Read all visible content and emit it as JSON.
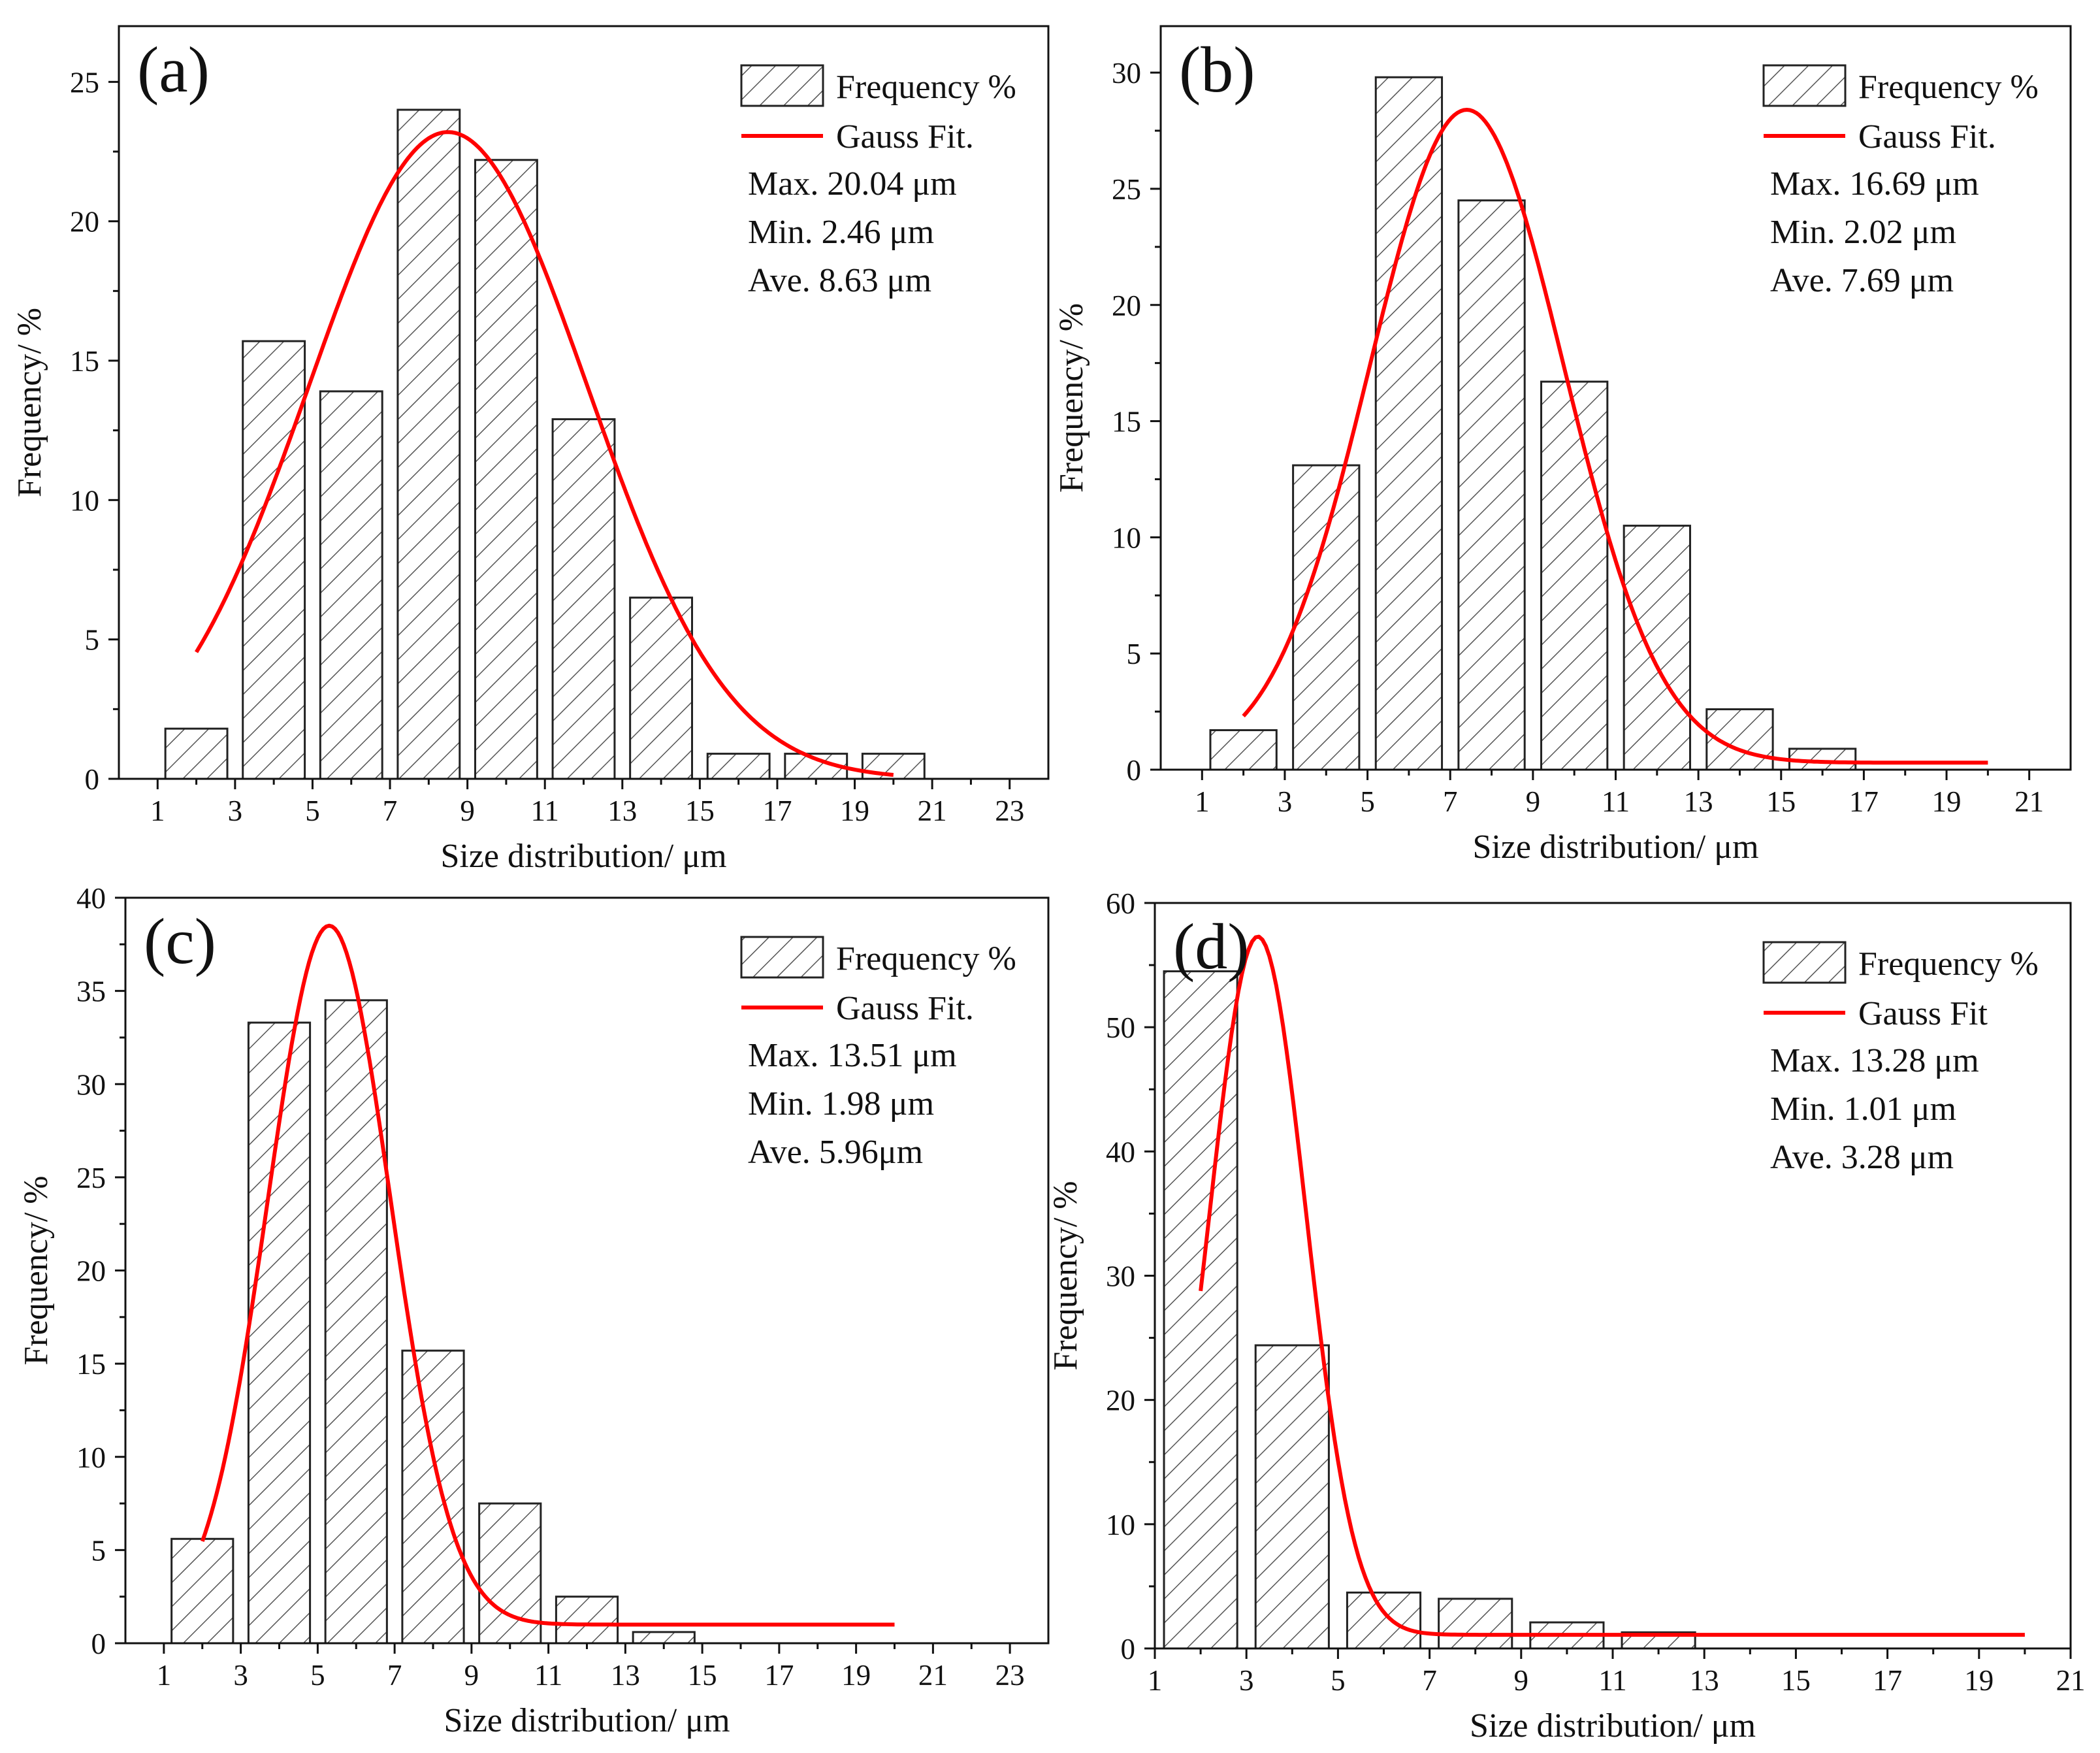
{
  "figure": {
    "label": "Size distribution histograms with Gauss fits"
  },
  "colors": {
    "bar_edge": "#222222",
    "hatch": "#555555",
    "fit_line": "#ff0000",
    "axis": "#111111"
  },
  "chart_data": [
    {
      "type": "bar",
      "panel_label": "(a)",
      "xlabel": "Size distribution/ μm",
      "ylabel": "Frequency/ %",
      "xlim": [
        0,
        24
      ],
      "ylim": [
        0,
        27
      ],
      "xticks": [
        1,
        3,
        5,
        7,
        9,
        11,
        13,
        15,
        17,
        19,
        21,
        23
      ],
      "xtick_labels": [
        "1",
        "3",
        "5",
        "7",
        "9",
        "11",
        "13",
        "15",
        "17",
        "19",
        "21",
        "23"
      ],
      "yticks": [
        0,
        5,
        10,
        15,
        20,
        25
      ],
      "ytick_labels": [
        "0",
        "5",
        "10",
        "15",
        "20",
        "25"
      ],
      "bar_centers": [
        2,
        4,
        6,
        8,
        10,
        12,
        14,
        16,
        18,
        20
      ],
      "bar_width": 1.6,
      "values": [
        1.8,
        15.7,
        13.9,
        24.0,
        22.2,
        12.9,
        6.5,
        0.9,
        0.9,
        0.9
      ],
      "series": [
        {
          "name": "Frequency %",
          "kind": "bar",
          "values": [
            1.8,
            15.7,
            13.9,
            24.0,
            22.2,
            12.9,
            6.5,
            0.9,
            0.9,
            0.9
          ]
        },
        {
          "name": "Gauss Fit.",
          "kind": "line",
          "x_range": [
            2,
            20
          ],
          "amplitude": 23.2,
          "center": 8.5,
          "sigma": 3.6,
          "baseline": 0
        }
      ],
      "legend": {
        "bar_label": "Frequency %",
        "line_label": "Gauss Fit.",
        "position": "top-right"
      },
      "stats": [
        "Max. 20.04 μm",
        "Min. 2.46 μm",
        "Ave. 8.63 μm"
      ]
    },
    {
      "type": "bar",
      "panel_label": "(b)",
      "xlabel": "Size distribution/ μm",
      "ylabel": "Frequency/ %",
      "xlim": [
        0,
        22
      ],
      "ylim": [
        0,
        32
      ],
      "xticks": [
        1,
        3,
        5,
        7,
        9,
        11,
        13,
        15,
        17,
        19,
        21
      ],
      "xtick_labels": [
        "1",
        "3",
        "5",
        "7",
        "9",
        "11",
        "13",
        "15",
        "17",
        "19",
        "21"
      ],
      "yticks": [
        0,
        5,
        10,
        15,
        20,
        25,
        30
      ],
      "ytick_labels": [
        "0",
        "5",
        "10",
        "15",
        "20",
        "25",
        "30"
      ],
      "bar_centers": [
        2,
        4,
        6,
        8,
        10,
        12,
        14,
        16
      ],
      "bar_width": 1.6,
      "values": [
        1.7,
        13.1,
        29.8,
        24.5,
        16.7,
        10.5,
        2.6,
        0.9
      ],
      "series": [
        {
          "name": "Frequency %",
          "kind": "bar",
          "values": [
            1.7,
            13.1,
            29.8,
            24.5,
            16.7,
            10.5,
            2.6,
            0.9
          ]
        },
        {
          "name": "Gauss Fit.",
          "kind": "line",
          "x_range": [
            2,
            20
          ],
          "amplitude": 28.1,
          "center": 7.4,
          "sigma": 2.35,
          "baseline": 0.3
        }
      ],
      "legend": {
        "bar_label": "Frequency %",
        "line_label": "Gauss Fit.",
        "position": "top-right"
      },
      "stats": [
        "Max. 16.69 μm",
        "Min. 2.02 μm",
        "Ave. 7.69 μm"
      ]
    },
    {
      "type": "bar",
      "panel_label": "(c)",
      "xlabel": "Size distribution/ μm",
      "ylabel": "Frequency/ %",
      "xlim": [
        0,
        24
      ],
      "ylim": [
        0,
        40
      ],
      "xticks": [
        1,
        3,
        5,
        7,
        9,
        11,
        13,
        15,
        17,
        19,
        21,
        23
      ],
      "xtick_labels": [
        "1",
        "3",
        "5",
        "7",
        "9",
        "11",
        "13",
        "15",
        "17",
        "19",
        "21",
        "23"
      ],
      "yticks": [
        0,
        5,
        10,
        15,
        20,
        25,
        30,
        35,
        40
      ],
      "ytick_labels": [
        "0",
        "5",
        "10",
        "15",
        "20",
        "25",
        "30",
        "35",
        "40"
      ],
      "bar_centers": [
        2,
        4,
        6,
        8,
        10,
        12,
        14
      ],
      "bar_width": 1.6,
      "values": [
        5.6,
        33.3,
        34.5,
        15.7,
        7.5,
        2.5,
        0.6
      ],
      "series": [
        {
          "name": "Frequency %",
          "kind": "bar",
          "values": [
            5.6,
            33.3,
            34.5,
            15.7,
            7.5,
            2.5,
            0.6
          ]
        },
        {
          "name": "Gauss Fit.",
          "kind": "line",
          "x_range": [
            2,
            20
          ],
          "amplitude": 37.5,
          "center": 5.3,
          "sigma": 1.6,
          "baseline": 1.0
        }
      ],
      "legend": {
        "bar_label": "Frequency %",
        "line_label": "Gauss Fit.",
        "position": "top-right"
      },
      "stats": [
        "Max. 13.51 μm",
        "Min. 1.98 μm",
        "Ave. 5.96μm"
      ]
    },
    {
      "type": "bar",
      "panel_label": "(d)",
      "xlabel": "Size distribution/ μm",
      "ylabel": "Frequency/ %",
      "xlim": [
        1,
        21
      ],
      "ylim": [
        0,
        60
      ],
      "xticks": [
        1,
        3,
        5,
        7,
        9,
        11,
        13,
        15,
        17,
        19,
        21
      ],
      "xtick_labels": [
        "1",
        "3",
        "5",
        "7",
        "9",
        "11",
        "13",
        "15",
        "17",
        "19",
        "21"
      ],
      "yticks": [
        0,
        10,
        20,
        30,
        40,
        50,
        60
      ],
      "ytick_labels": [
        "0",
        "10",
        "20",
        "30",
        "40",
        "50",
        "60"
      ],
      "bar_centers": [
        2,
        4,
        6,
        8,
        10,
        12
      ],
      "bar_width": 1.6,
      "values": [
        54.5,
        24.4,
        4.5,
        4.0,
        2.1,
        1.3
      ],
      "series": [
        {
          "name": "Frequency %",
          "kind": "bar",
          "values": [
            54.5,
            24.4,
            4.5,
            4.0,
            2.1,
            1.3
          ]
        },
        {
          "name": "Gauss Fit",
          "kind": "line",
          "x_range": [
            2,
            20
          ],
          "amplitude": 56.2,
          "center": 3.25,
          "sigma": 1.05,
          "baseline": 1.1
        }
      ],
      "legend": {
        "bar_label": "Frequency %",
        "line_label": "Gauss Fit",
        "position": "top-right"
      },
      "stats": [
        "Max. 13.28 μm",
        "Min. 1.01 μm",
        "Ave. 3.28 μm"
      ]
    }
  ]
}
